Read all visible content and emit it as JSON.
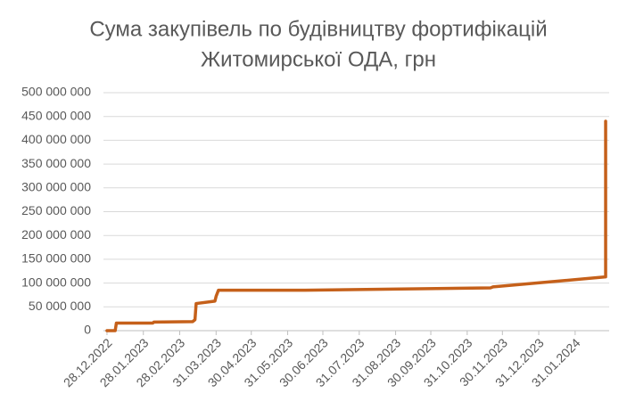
{
  "chart_data": {
    "type": "line",
    "title": [
      "Сума закупівель по будівництву фортифікацій",
      "Житомирської ОДА, грн"
    ],
    "x": [
      "2022-12-28",
      "2023-01-04",
      "2023-01-05",
      "2023-02-05",
      "2023-02-06",
      "2023-03-11",
      "2023-03-13",
      "2023-03-14",
      "2023-03-30",
      "2023-03-31",
      "2023-04-02",
      "2023-06-15",
      "2023-09-20",
      "2023-11-20",
      "2023-11-22",
      "2024-02-26",
      "2024-02-26"
    ],
    "values": [
      0,
      0,
      16000000,
      16000000,
      18000000,
      19000000,
      23000000,
      57000000,
      62000000,
      72000000,
      85000000,
      85000000,
      88000000,
      90000000,
      92000000,
      113000000,
      440000000
    ],
    "color": "#c5601a",
    "xlim": [
      "2022-12-25",
      "2024-02-29"
    ],
    "xticks": [
      {
        "value": "2022-12-28",
        "label": "28.12.2022"
      },
      {
        "value": "2023-01-28",
        "label": "28.01.2023"
      },
      {
        "value": "2023-02-28",
        "label": "28.02.2023"
      },
      {
        "value": "2023-03-31",
        "label": "31.03.2023"
      },
      {
        "value": "2023-04-30",
        "label": "30.04.2023"
      },
      {
        "value": "2023-05-31",
        "label": "31.05.2023"
      },
      {
        "value": "2023-06-30",
        "label": "30.06.2023"
      },
      {
        "value": "2023-07-31",
        "label": "31.07.2023"
      },
      {
        "value": "2023-08-31",
        "label": "31.08.2023"
      },
      {
        "value": "2023-09-30",
        "label": "30.09.2023"
      },
      {
        "value": "2023-10-31",
        "label": "31.10.2023"
      },
      {
        "value": "2023-11-30",
        "label": "30.11.2023"
      },
      {
        "value": "2023-12-31",
        "label": "31.12.2023"
      },
      {
        "value": "2024-01-31",
        "label": "31.01.2024"
      }
    ],
    "ylim": [
      0,
      500000000
    ],
    "yticks": [
      0,
      {
        "value": 50000000,
        "label": "50 000 000"
      },
      {
        "value": 100000000,
        "label": "100 000 000"
      },
      {
        "value": 150000000,
        "label": "150 000 000"
      },
      {
        "value": 200000000,
        "label": "200 000 000"
      },
      {
        "value": 250000000,
        "label": "250 000 000"
      },
      {
        "value": 300000000,
        "label": "300 000 000"
      },
      {
        "value": 350000000,
        "label": "350 000 000"
      },
      {
        "value": 400000000,
        "label": "400 000 000"
      },
      {
        "value": 450000000,
        "label": "450 000 000"
      },
      {
        "value": 500000000,
        "label": "500 000 000"
      }
    ],
    "grid": true
  }
}
